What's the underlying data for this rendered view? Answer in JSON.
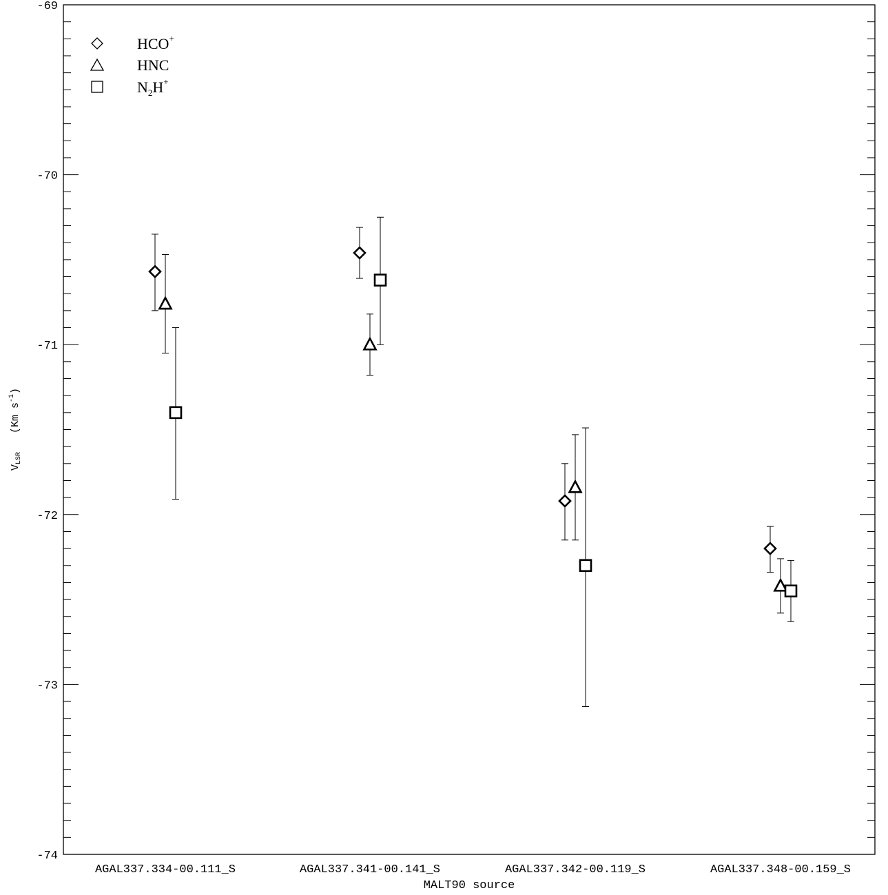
{
  "chart_data": {
    "type": "scatter",
    "xlabel": "MALT90 source",
    "ylabel_main": "V",
    "ylabel_sub": "LSR",
    "ylabel_unit_pre": "(Km s",
    "ylabel_unit_sup": "-1",
    "ylabel_unit_post": ")",
    "ylim": [
      -74,
      -69
    ],
    "yticks": [
      -69,
      -70,
      -71,
      -72,
      -73,
      -74
    ],
    "ytick_labels": [
      "-69",
      "-70",
      "-71",
      "-72",
      "-73",
      "-74"
    ],
    "y_minor_step": 0.1,
    "categories": [
      "AGAL337.334-00.111_S",
      "AGAL337.341-00.141_S",
      "AGAL337.342-00.119_S",
      "AGAL337.348-00.159_S"
    ],
    "legend_position": "top-left",
    "series": [
      {
        "name": "HCO+",
        "legend_main": "HCO",
        "legend_sub": "",
        "legend_sup": "+",
        "marker": "diamond",
        "offset": -1,
        "values": [
          -70.57,
          -70.46,
          -71.92,
          -72.2
        ],
        "err_low": [
          -70.8,
          -70.61,
          -72.15,
          -72.34
        ],
        "err_high": [
          -70.35,
          -70.31,
          -71.7,
          -72.07
        ]
      },
      {
        "name": "HNC",
        "legend_main": "HNC",
        "legend_sub": "",
        "legend_sup": "",
        "marker": "triangle",
        "offset": 0,
        "values": [
          -70.76,
          -71.0,
          -71.84,
          -72.42
        ],
        "err_low": [
          -71.05,
          -71.18,
          -72.15,
          -72.58
        ],
        "err_high": [
          -70.47,
          -70.82,
          -71.53,
          -72.26
        ]
      },
      {
        "name": "N2H+",
        "legend_main": "N",
        "legend_sub": "2",
        "legend_mid": "H",
        "legend_sup": "+",
        "marker": "square",
        "offset": 1,
        "values": [
          -71.4,
          -70.62,
          -72.3,
          -72.45
        ],
        "err_low": [
          -71.91,
          -71.0,
          -73.13,
          -72.63
        ],
        "err_high": [
          -70.9,
          -70.25,
          -71.49,
          -72.27
        ]
      }
    ]
  }
}
